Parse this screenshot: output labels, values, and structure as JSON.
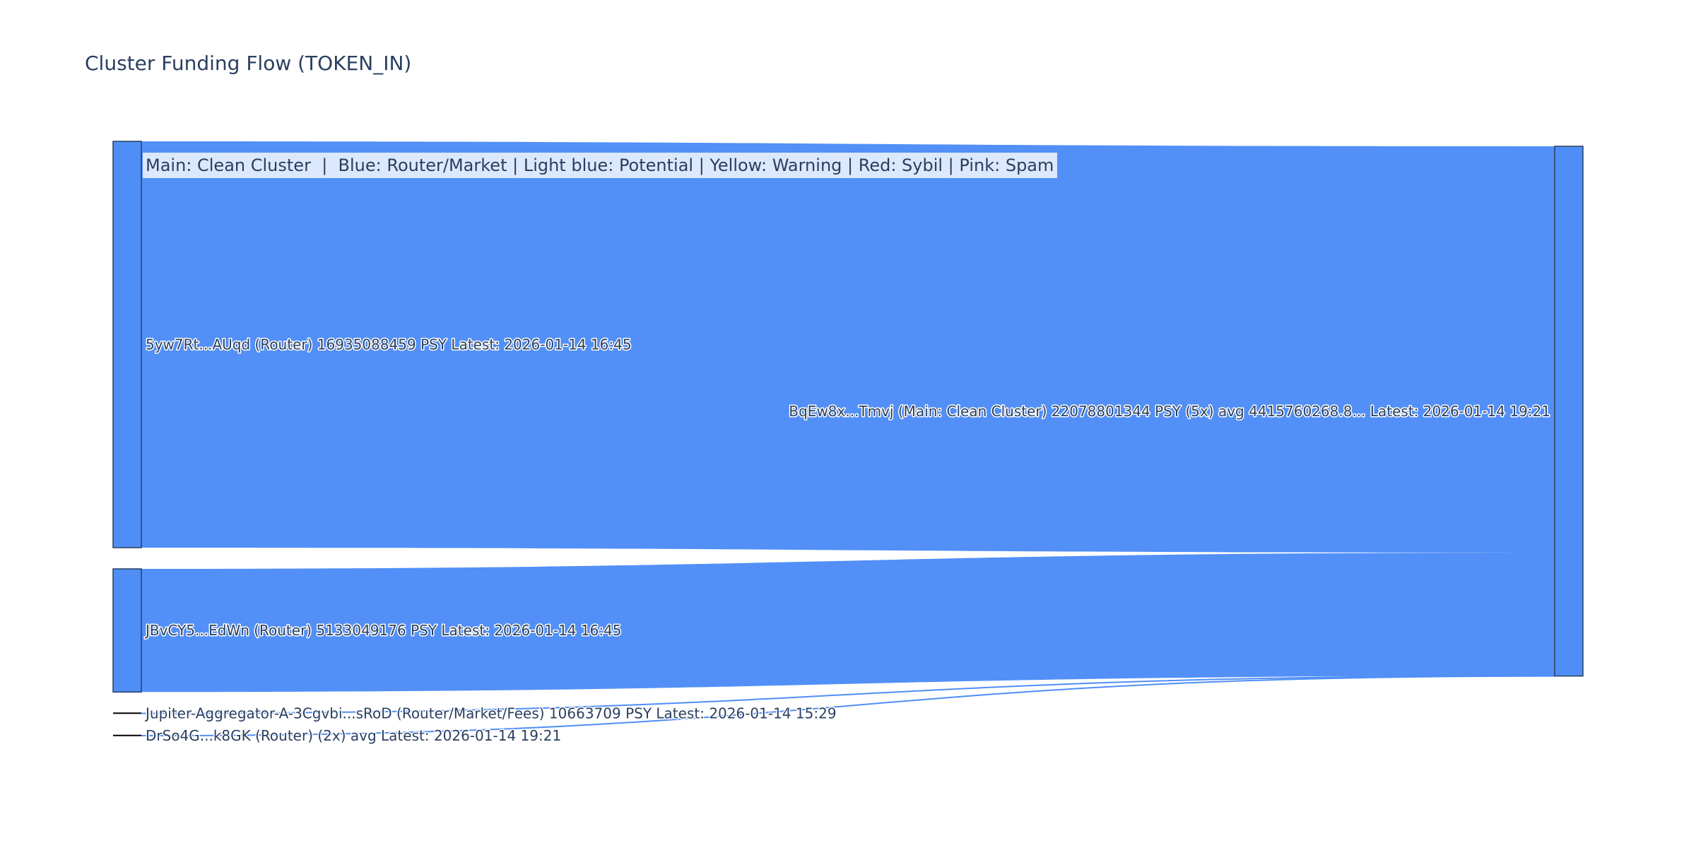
{
  "chart_data": {
    "type": "sankey",
    "title": "Cluster Funding Flow (TOKEN_IN)",
    "annotation": "Main: Clean Cluster  |  Blue: Router/Market | Light blue: Potential | Yellow: Warning | Red: Sybil | Pink: Spam",
    "colors": {
      "node": "#4f8ef7",
      "link": "#4f8ef7",
      "node_border": "#2a3f5f",
      "text": "#2a3f5f",
      "annotation_bg": "#dce8fc"
    },
    "nodes": [
      {
        "id": "src1",
        "label": "5yw7Rt...AUqd (Router) 16935088459 PSY Latest: 2026-01-14 16:45",
        "side": "left"
      },
      {
        "id": "src2",
        "label": "JBvCY5...EdWn (Router) 5133049176 PSY Latest: 2026-01-14 16:45",
        "side": "left"
      },
      {
        "id": "src3",
        "label": "Jupiter-Aggregator-A-3Cgvbi...sRoD (Router/Market/Fees) 10663709 PSY Latest: 2026-01-14 15:29",
        "side": "left"
      },
      {
        "id": "src4",
        "label": "DrSo4G...k8GK (Router)  (2x) avg  Latest: 2026-01-14 19:21",
        "side": "left"
      },
      {
        "id": "dst",
        "label": "BqEw8x...Tmvj (Main: Clean Cluster) 22078801344 PSY (5x) avg 4415760268.8... Latest: 2026-01-14 19:21",
        "side": "right"
      }
    ],
    "links": [
      {
        "source": "src1",
        "target": "dst",
        "value": 16935088459
      },
      {
        "source": "src2",
        "target": "dst",
        "value": 5133049176
      },
      {
        "source": "src3",
        "target": "dst",
        "value": 10663709
      },
      {
        "source": "src4",
        "target": "dst",
        "value": null
      }
    ],
    "unit": "PSY"
  }
}
